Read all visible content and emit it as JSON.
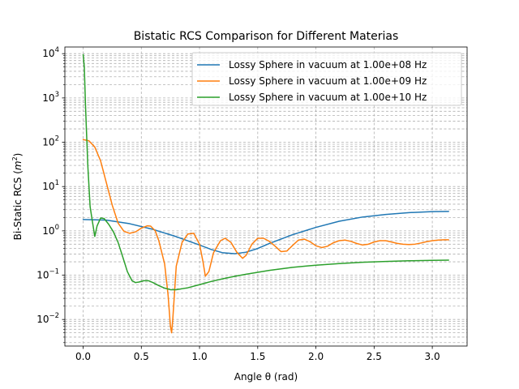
{
  "chart_data": {
    "type": "line",
    "title": "Bistatic RCS Comparison for Different Materias",
    "xlabel": "Angle θ (rad)",
    "ylabel_main": "Bi-Static RCS (",
    "ylabel_sym": "m",
    "ylabel_exp": "2",
    "ylabel_close": ")",
    "xlim": [
      -0.157,
      3.299
    ],
    "ylim_log10": [
      -2.6,
      4.15
    ],
    "yscale": "log",
    "grid": true,
    "legend_position": "upper right",
    "x_ticks": [
      0.0,
      0.5,
      1.0,
      1.5,
      2.0,
      2.5,
      3.0
    ],
    "x_tick_labels": [
      "0.0",
      "0.5",
      "1.0",
      "1.5",
      "2.0",
      "2.5",
      "3.0"
    ],
    "y_ticks_log10": [
      -2,
      -1,
      0,
      1,
      2,
      3,
      4
    ],
    "y_tick_base": "10",
    "y_tick_exps": [
      "−2",
      "−1",
      "0",
      "1",
      "2",
      "3",
      "4"
    ],
    "series": [
      {
        "name": "Lossy Sphere in vacuum at 1.00e+08 Hz",
        "color": "#1f77b4",
        "x": [
          0.0,
          0.2,
          0.4,
          0.6,
          0.8,
          1.0,
          1.1,
          1.2,
          1.3,
          1.4,
          1.5,
          1.6,
          1.8,
          2.0,
          2.2,
          2.4,
          2.6,
          2.8,
          3.0,
          3.14
        ],
        "y": [
          1.8,
          1.75,
          1.45,
          1.08,
          0.74,
          0.48,
          0.38,
          0.32,
          0.305,
          0.33,
          0.4,
          0.52,
          0.82,
          1.2,
          1.65,
          2.05,
          2.35,
          2.58,
          2.72,
          2.75
        ]
      },
      {
        "name": "Lossy Sphere in vacuum at 1.00e+09 Hz",
        "color": "#ff7f0e",
        "x": [
          0.0,
          0.05,
          0.1,
          0.15,
          0.2,
          0.25,
          0.3,
          0.35,
          0.4,
          0.45,
          0.5,
          0.55,
          0.58,
          0.62,
          0.65,
          0.7,
          0.73,
          0.75,
          0.76,
          0.77,
          0.8,
          0.85,
          0.9,
          0.95,
          1.0,
          1.03,
          1.05,
          1.08,
          1.12,
          1.18,
          1.22,
          1.27,
          1.32,
          1.37,
          1.4,
          1.45,
          1.5,
          1.55,
          1.6,
          1.65,
          1.7,
          1.75,
          1.8,
          1.85,
          1.9,
          1.95,
          2.0,
          2.05,
          2.1,
          2.15,
          2.2,
          2.25,
          2.3,
          2.35,
          2.4,
          2.45,
          2.5,
          2.55,
          2.6,
          2.65,
          2.7,
          2.75,
          2.8,
          2.85,
          2.9,
          2.95,
          3.0,
          3.05,
          3.1,
          3.14
        ],
        "y": [
          115,
          108,
          78,
          38,
          12,
          3.8,
          1.5,
          0.98,
          0.88,
          0.95,
          1.15,
          1.3,
          1.28,
          1.0,
          0.6,
          0.18,
          0.035,
          0.007,
          0.005,
          0.01,
          0.16,
          0.55,
          0.85,
          0.88,
          0.5,
          0.2,
          0.095,
          0.12,
          0.32,
          0.6,
          0.68,
          0.55,
          0.33,
          0.24,
          0.28,
          0.5,
          0.68,
          0.68,
          0.58,
          0.45,
          0.34,
          0.35,
          0.47,
          0.62,
          0.65,
          0.57,
          0.46,
          0.42,
          0.45,
          0.54,
          0.6,
          0.62,
          0.58,
          0.52,
          0.48,
          0.5,
          0.56,
          0.6,
          0.6,
          0.56,
          0.52,
          0.5,
          0.49,
          0.5,
          0.53,
          0.57,
          0.6,
          0.62,
          0.63,
          0.63
        ]
      },
      {
        "name": "Lossy Sphere in vacuum at 1.00e+10 Hz",
        "color": "#2ca02c",
        "x": [
          0.0,
          0.01,
          0.02,
          0.04,
          0.06,
          0.08,
          0.1,
          0.12,
          0.15,
          0.18,
          0.22,
          0.26,
          0.3,
          0.34,
          0.38,
          0.42,
          0.45,
          0.48,
          0.52,
          0.56,
          0.6,
          0.65,
          0.7,
          0.75,
          0.8,
          0.9,
          1.0,
          1.1,
          1.2,
          1.3,
          1.4,
          1.6,
          1.8,
          2.0,
          2.2,
          2.4,
          2.6,
          2.8,
          3.0,
          3.14
        ],
        "y": [
          9500,
          5000,
          700,
          30,
          3.5,
          1.6,
          0.75,
          1.3,
          1.95,
          1.9,
          1.4,
          0.95,
          0.55,
          0.26,
          0.12,
          0.075,
          0.068,
          0.07,
          0.075,
          0.075,
          0.068,
          0.058,
          0.051,
          0.047,
          0.047,
          0.052,
          0.061,
          0.072,
          0.083,
          0.094,
          0.105,
          0.128,
          0.15,
          0.168,
          0.183,
          0.195,
          0.204,
          0.211,
          0.216,
          0.218
        ]
      }
    ]
  }
}
